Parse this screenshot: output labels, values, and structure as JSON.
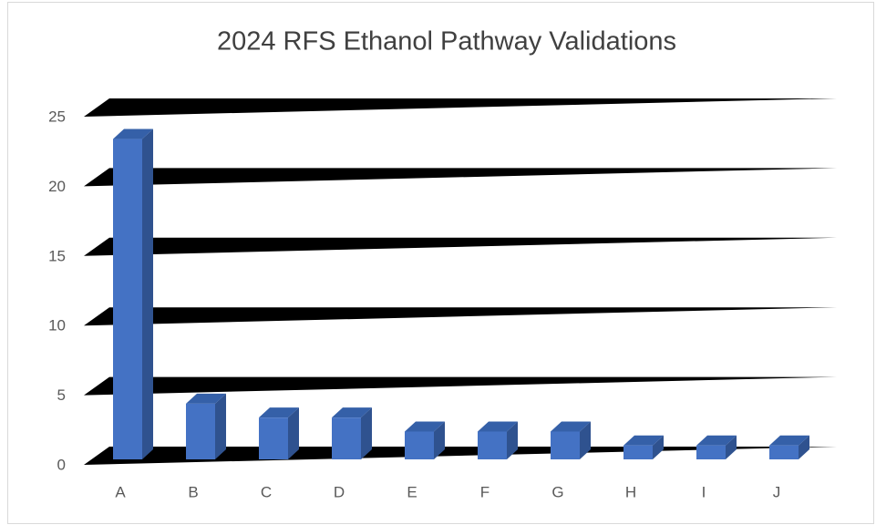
{
  "chart_data": {
    "type": "bar3d",
    "title": "2024 RFS Ethanol Pathway Validations",
    "categories": [
      "A",
      "B",
      "C",
      "D",
      "E",
      "F",
      "G",
      "H",
      "I",
      "J"
    ],
    "values": [
      23,
      4,
      3,
      3,
      2,
      2,
      2,
      1,
      1,
      1
    ],
    "color": "#4472c4",
    "ylim": [
      0,
      25
    ],
    "yticks": [
      0,
      5,
      10,
      15,
      20,
      25
    ],
    "grid": true
  }
}
